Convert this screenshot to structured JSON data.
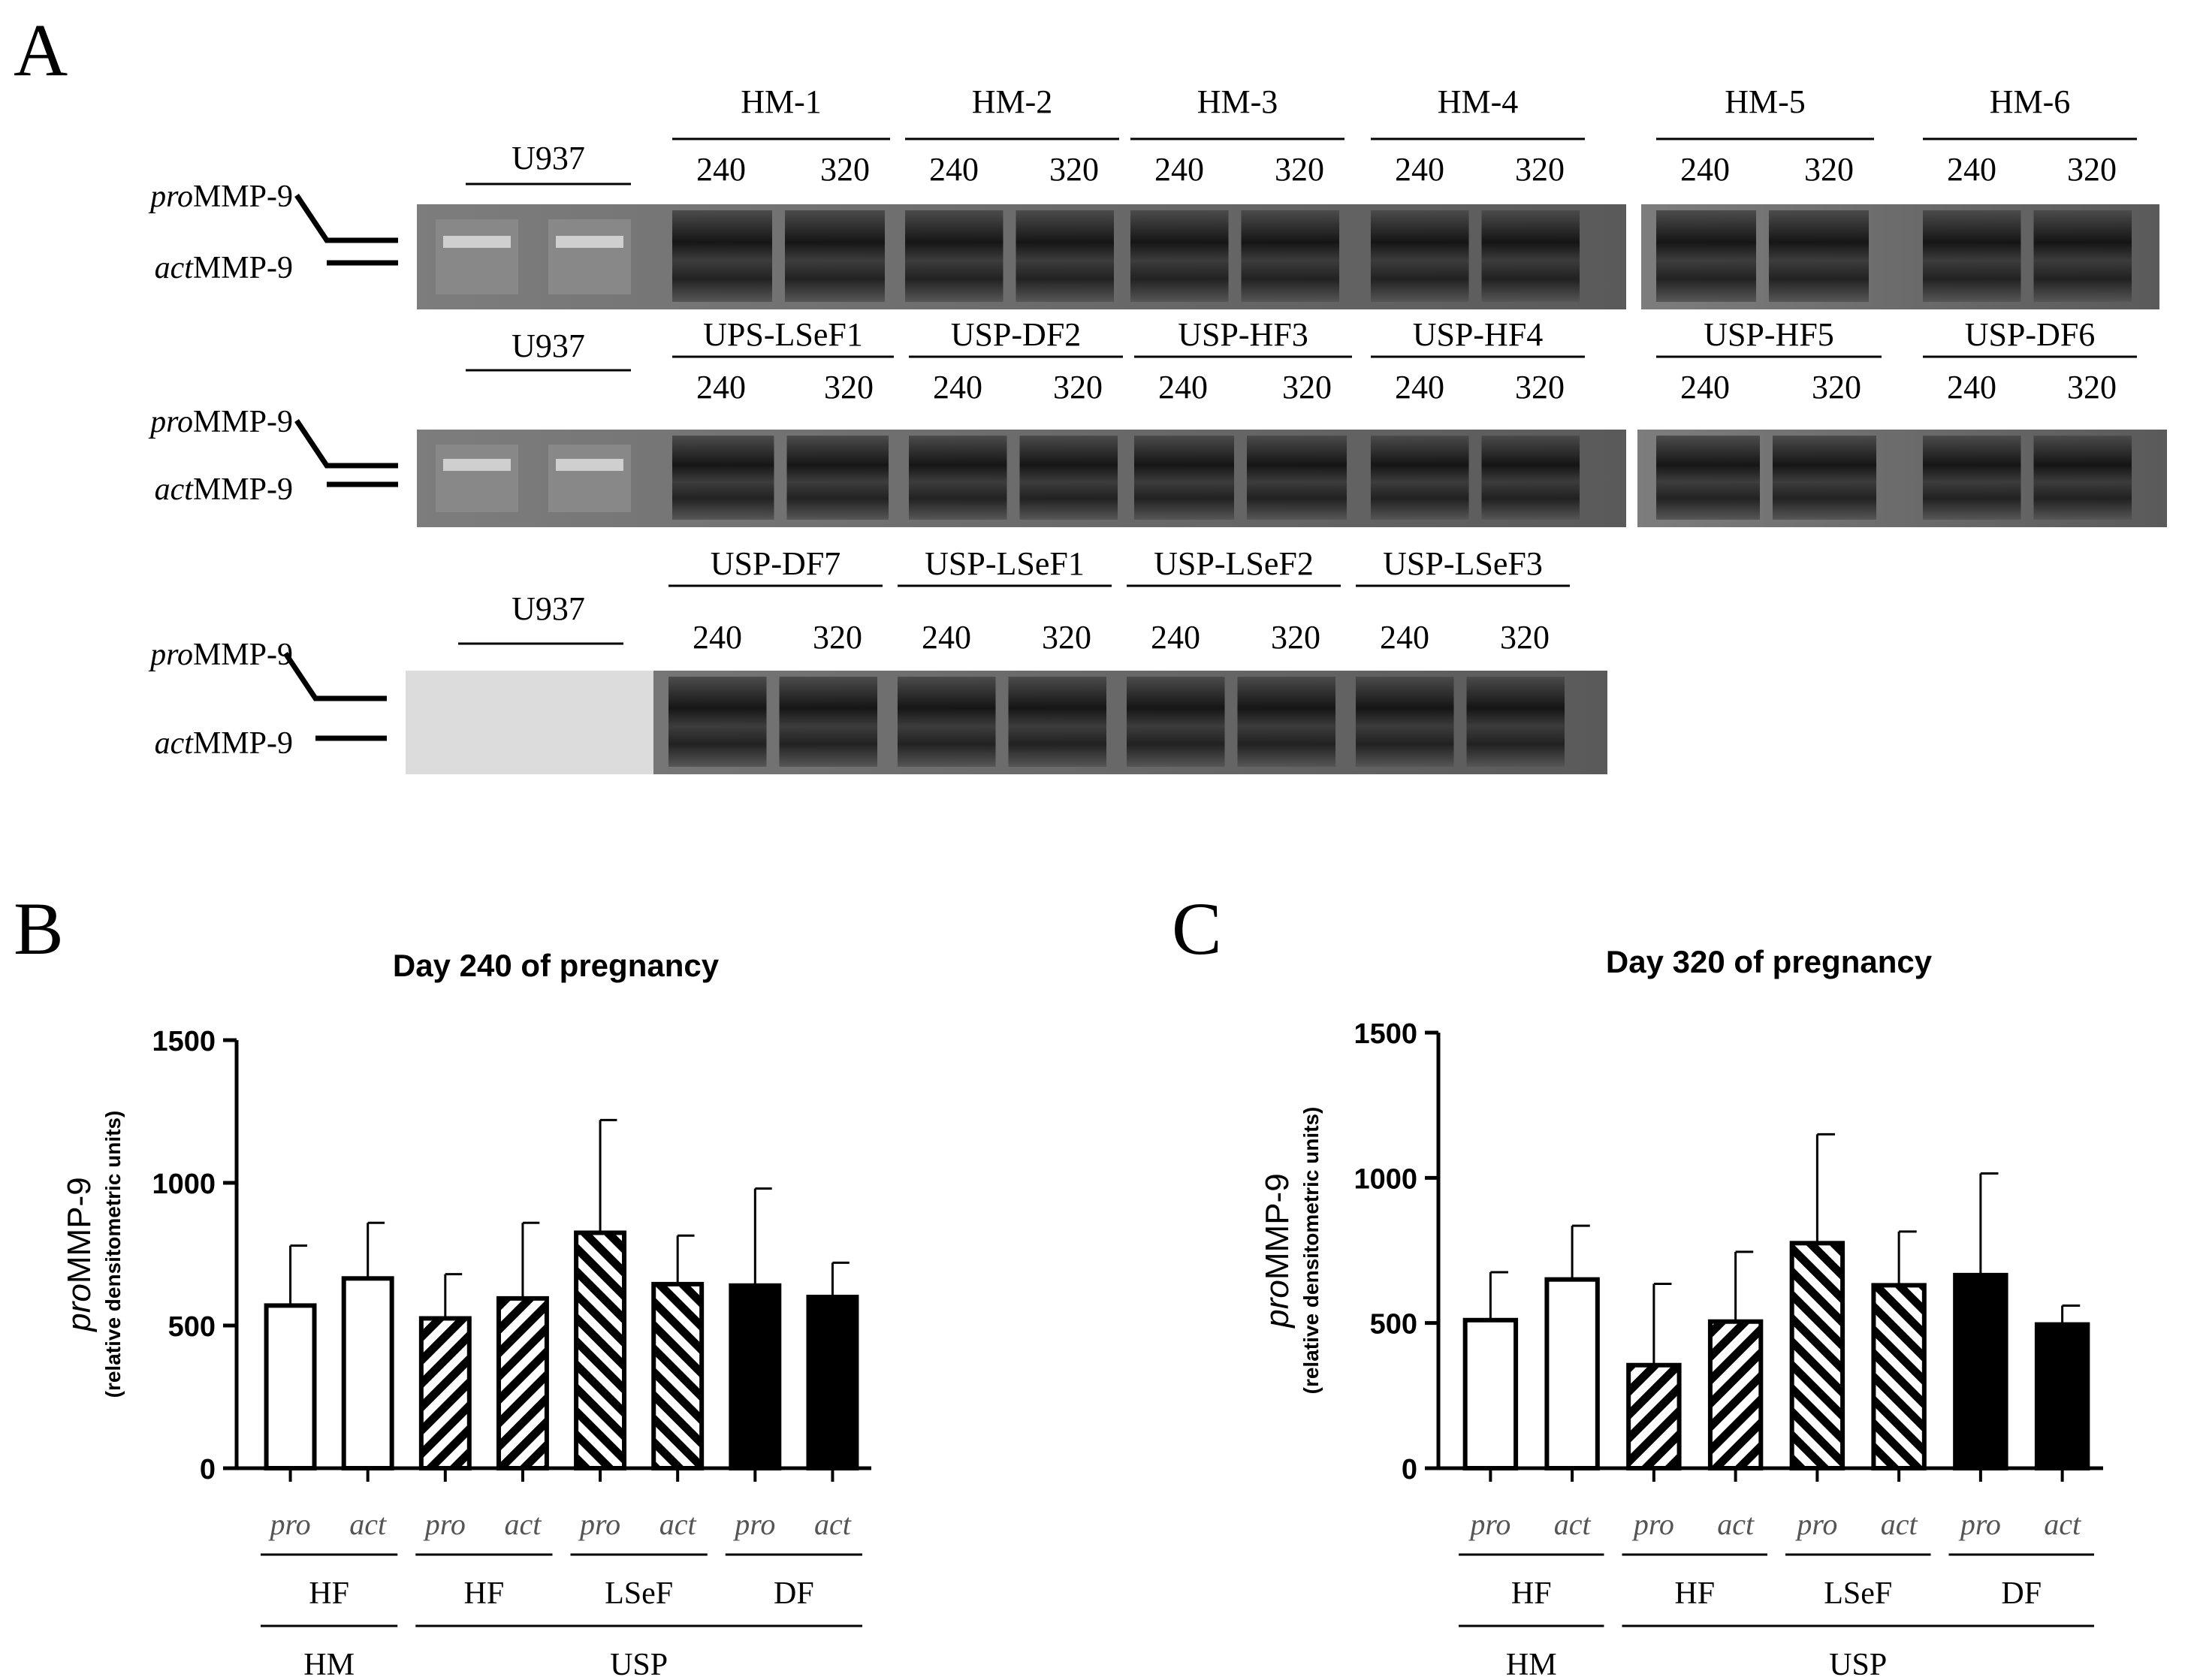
{
  "panel_labels": {
    "a": "A",
    "b": "B",
    "c": "C"
  },
  "gel": {
    "marker_label": "U937",
    "band_labels": {
      "pro_italic": "pro",
      "act_italic": "act",
      "suffix": "MMP-9"
    },
    "rows": [
      {
        "groups": [
          "HM-1",
          "HM-2",
          "HM-3",
          "HM-4",
          "HM-5",
          "HM-6"
        ]
      },
      {
        "groups": [
          "UPS-LSeF1",
          "USP-DF2",
          "USP-HF3",
          "USP-HF4",
          "USP-HF5",
          "USP-DF6"
        ]
      },
      {
        "groups": [
          "USP-DF7",
          "USP-LSeF1",
          "USP-LSeF2",
          "USP-LSeF3"
        ]
      }
    ],
    "lane_days": [
      "240",
      "320"
    ]
  },
  "chart_data": [
    {
      "type": "bar",
      "title": "Day 240 of pregnancy",
      "ylabel_italic": "pro",
      "ylabel_main": "MMP-9",
      "ylabel_sub": "(relative densitometric units)",
      "ylim": [
        0,
        1500
      ],
      "yticks": [
        "0",
        "500",
        "1000",
        "1500"
      ],
      "categories": [
        "pro",
        "act",
        "pro",
        "act",
        "pro",
        "act",
        "pro",
        "act"
      ],
      "values": [
        570,
        665,
        525,
        595,
        825,
        645,
        640,
        600
      ],
      "error": [
        210,
        195,
        155,
        265,
        395,
        170,
        340,
        120
      ],
      "fills": [
        "white",
        "white",
        "hatch-fwd",
        "hatch-fwd",
        "hatch-back",
        "hatch-back",
        "black",
        "black"
      ],
      "groups_level1": [
        "HF",
        "HF",
        "LSeF",
        "DF"
      ],
      "groups_level2": [
        "HM",
        "USP"
      ]
    },
    {
      "type": "bar",
      "title": "Day 320 of pregnancy",
      "ylabel_italic": "pro",
      "ylabel_main": "MMP-9",
      "ylabel_sub": "(relative densitometric units)",
      "ylim": [
        0,
        1500
      ],
      "yticks": [
        "0",
        "500",
        "1000",
        "1500"
      ],
      "categories": [
        "pro",
        "act",
        "pro",
        "act",
        "pro",
        "act",
        "pro",
        "act"
      ],
      "values": [
        510,
        650,
        355,
        505,
        775,
        630,
        665,
        495
      ],
      "error": [
        165,
        185,
        280,
        240,
        375,
        185,
        350,
        65
      ],
      "fills": [
        "white",
        "white",
        "hatch-fwd",
        "hatch-fwd",
        "hatch-back",
        "hatch-back",
        "black",
        "black"
      ],
      "groups_level1": [
        "HF",
        "HF",
        "LSeF",
        "DF"
      ],
      "groups_level2": [
        "HM",
        "USP"
      ]
    }
  ],
  "colors": {
    "ink": "#000000",
    "gel_dark": "#1c1c1c",
    "gel_light": "#9a9a9a",
    "background": "#ffffff"
  }
}
